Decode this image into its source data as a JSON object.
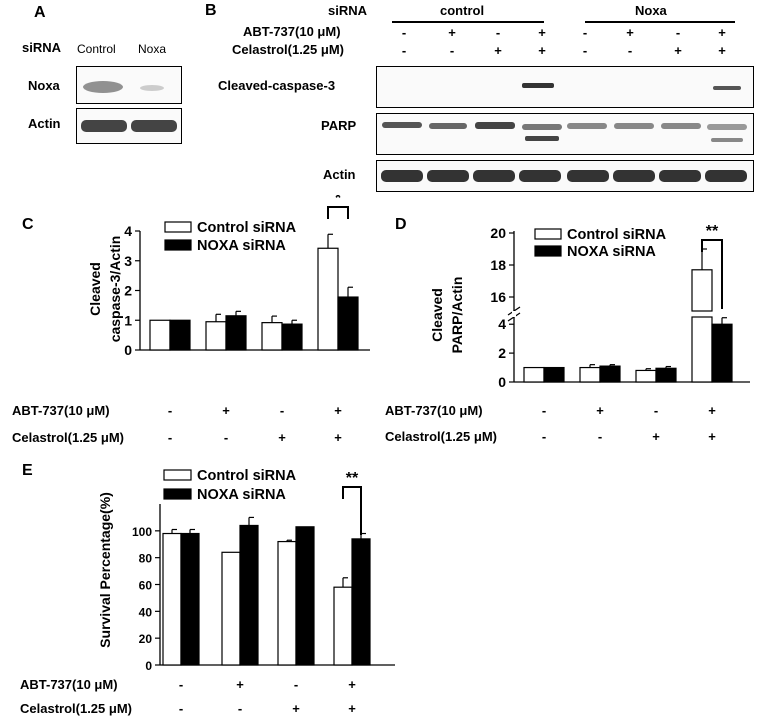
{
  "panel_a": {
    "letter": "A",
    "sirna_label": "siRNA",
    "lanes": [
      "Control",
      "Noxa"
    ],
    "blots": [
      "Noxa",
      "Actin"
    ]
  },
  "panel_b": {
    "letter": "B",
    "sirna_label": "siRNA",
    "groups": [
      "control",
      "Noxa"
    ],
    "treatments": [
      {
        "label": "ABT-737(10 μM)",
        "values": [
          "-",
          "+",
          "-",
          "+",
          "-",
          "+",
          "-",
          "+"
        ]
      },
      {
        "label": "Celastrol(1.25 μM)",
        "values": [
          "-",
          "-",
          "+",
          "+",
          "-",
          "-",
          "+",
          "+"
        ]
      }
    ],
    "blots": [
      "Cleaved-caspase-3",
      "PARP",
      "Actin"
    ]
  },
  "chart_data": [
    {
      "panel": "C",
      "type": "bar",
      "ylabel": [
        "Cleaved",
        "caspase-3/Actin"
      ],
      "ylim": [
        0,
        4
      ],
      "yticks": [
        0,
        1,
        2,
        3,
        4
      ],
      "series": [
        {
          "name": "Control siRNA",
          "values": [
            1.0,
            0.95,
            0.92,
            3.42
          ],
          "errors": [
            0,
            0.25,
            0.22,
            0.47
          ],
          "color": "#ffffff"
        },
        {
          "name": "NOXA siRNA",
          "values": [
            1.0,
            1.15,
            0.87,
            1.78
          ],
          "errors": [
            0,
            0.15,
            0.13,
            0.33
          ],
          "color": "#000000"
        }
      ],
      "significance": [
        {
          "group": 4,
          "label": "*"
        }
      ],
      "conditions": [
        {
          "label": "ABT-737(10 μM)",
          "values": [
            "-",
            "+",
            "-",
            "+"
          ]
        },
        {
          "label": "Celastrol(1.25 μM)",
          "values": [
            "-",
            "-",
            "+",
            "+"
          ]
        }
      ],
      "legend": "top-left"
    },
    {
      "panel": "D",
      "type": "bar",
      "ylabel": [
        "Cleaved",
        "PARP/Actin"
      ],
      "ylim": [
        0,
        20
      ],
      "axis_break": [
        4.5,
        15.5
      ],
      "yticks": [
        0,
        2,
        4,
        16,
        18,
        20
      ],
      "series": [
        {
          "name": "Control siRNA",
          "values": [
            1.0,
            1.0,
            0.8,
            17.7
          ],
          "errors": [
            0,
            0.2,
            0.12,
            1.3
          ],
          "color": "#ffffff"
        },
        {
          "name": "NOXA siRNA",
          "values": [
            1.0,
            1.1,
            0.95,
            4.0
          ],
          "errors": [
            0,
            0.1,
            0.12,
            0.45
          ],
          "color": "#000000"
        }
      ],
      "significance": [
        {
          "group": 4,
          "label": "**"
        }
      ],
      "conditions": [
        {
          "label": "ABT-737(10 μM)",
          "values": [
            "-",
            "+",
            "-",
            "+"
          ]
        },
        {
          "label": "Celastrol(1.25 μM)",
          "values": [
            "-",
            "-",
            "+",
            "+"
          ]
        }
      ],
      "legend": "top"
    },
    {
      "panel": "E",
      "type": "bar",
      "ylabel": [
        "Survival Percentage(%)"
      ],
      "ylim": [
        0,
        120
      ],
      "yticks": [
        0,
        20,
        40,
        60,
        80,
        100
      ],
      "series": [
        {
          "name": "Control siRNA",
          "values": [
            98,
            84,
            92,
            58
          ],
          "errors": [
            3,
            0,
            1,
            7
          ],
          "color": "#ffffff"
        },
        {
          "name": "NOXA siRNA",
          "values": [
            98,
            104,
            103,
            94
          ],
          "errors": [
            3,
            6,
            0,
            4
          ],
          "color": "#000000"
        }
      ],
      "significance": [
        {
          "group": 4,
          "label": "**"
        }
      ],
      "conditions": [
        {
          "label": "ABT-737(10 μM)",
          "values": [
            "-",
            "+",
            "-",
            "+"
          ]
        },
        {
          "label": "Celastrol(1.25 μM)",
          "values": [
            "-",
            "-",
            "+",
            "+"
          ]
        }
      ],
      "legend": "top"
    }
  ]
}
